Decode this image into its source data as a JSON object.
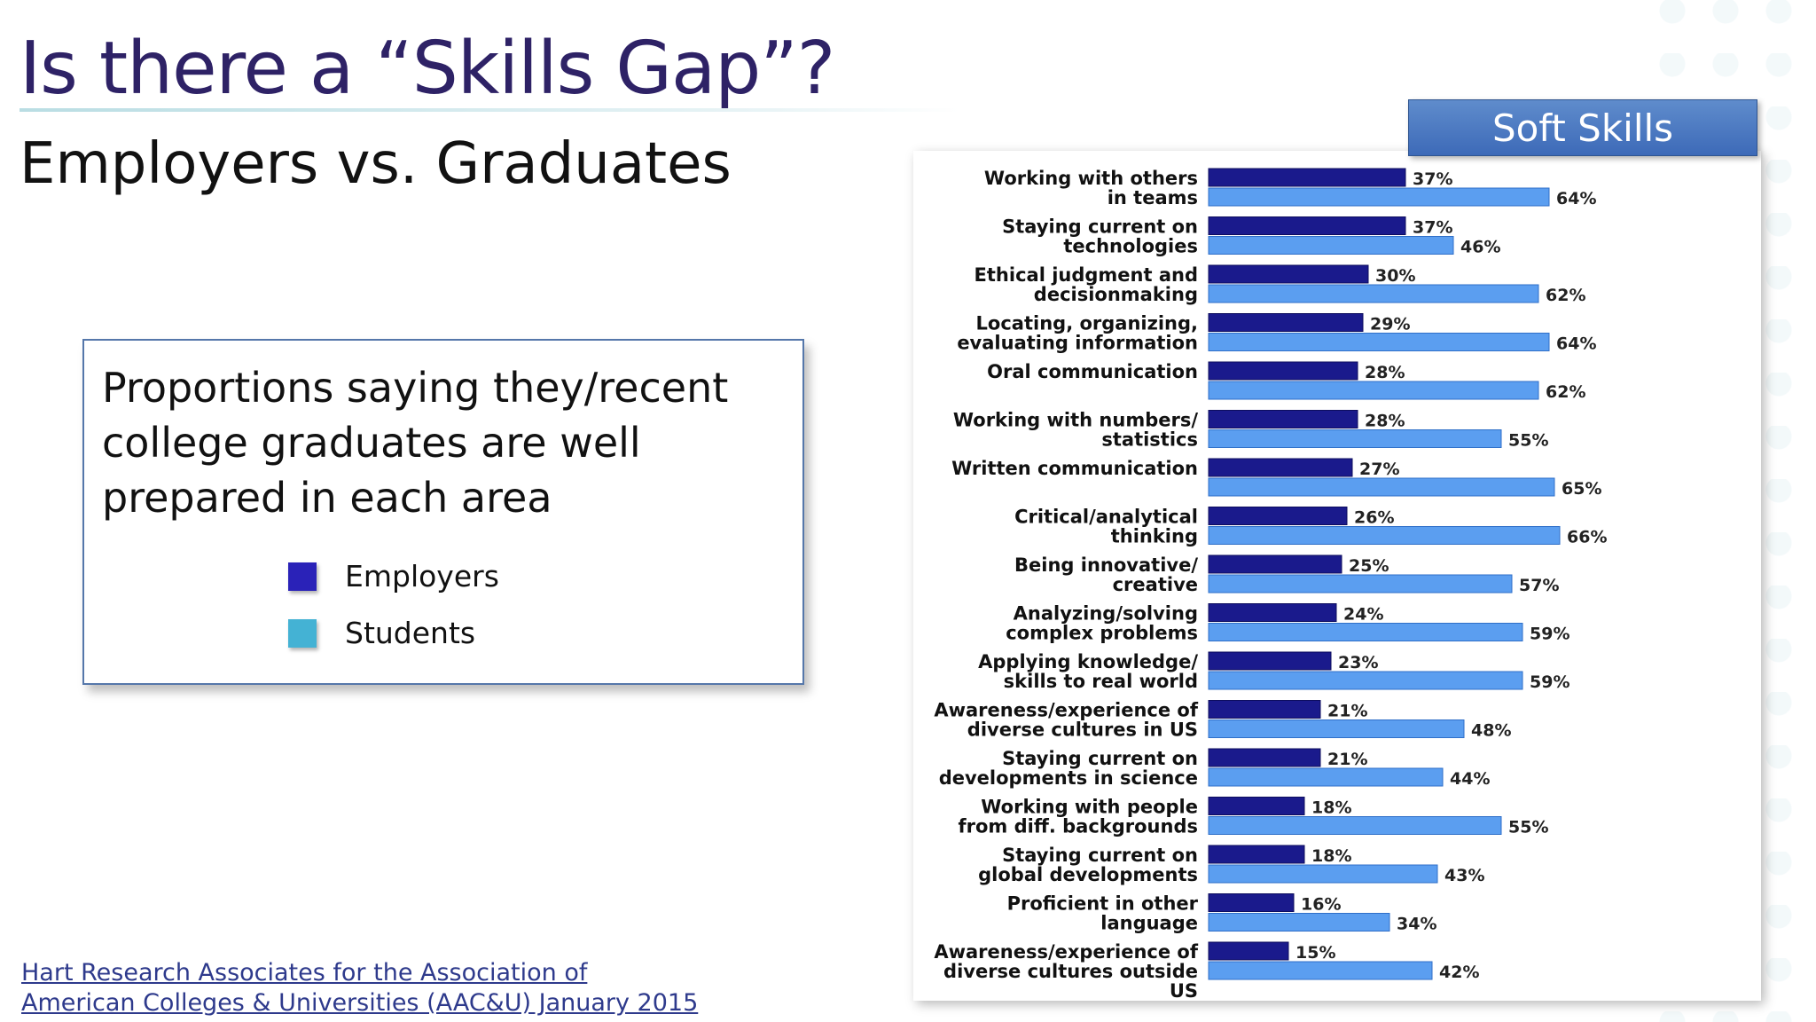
{
  "slide": {
    "title": "Is there a “Skills Gap”?",
    "subtitle": "Employers vs. Graduates",
    "legend_description": "Proportions saying they/recent college graduates are well prepared in each area",
    "legend_items": [
      {
        "label": "Employers",
        "color": "#2a22b8"
      },
      {
        "label": "Students",
        "color": "#44b2d4"
      }
    ],
    "source_line1": "Hart Research Associates for the  Association of",
    "source_line2": "American Colleges & Universities (AAC&U) January 2015"
  },
  "chart_data": {
    "type": "bar",
    "orientation": "horizontal",
    "title": "Soft Skills",
    "categories": [
      [
        "Working with others",
        "in teams"
      ],
      [
        "Staying current on",
        "technologies"
      ],
      [
        "Ethical judgment and",
        "decisionmaking"
      ],
      [
        "Locating, organizing,",
        "evaluating information"
      ],
      [
        "Oral communication"
      ],
      [
        "Working with numbers/",
        "statistics"
      ],
      [
        "Written communication"
      ],
      [
        "Critical/analytical",
        "thinking"
      ],
      [
        "Being innovative/",
        "creative"
      ],
      [
        "Analyzing/solving",
        "complex problems"
      ],
      [
        "Applying knowledge/",
        "skills to real world"
      ],
      [
        "Awareness/experience of",
        "diverse cultures in US"
      ],
      [
        "Staying current on",
        "developments in science"
      ],
      [
        "Working with people",
        "from diff. backgrounds"
      ],
      [
        "Staying current on",
        "global developments"
      ],
      [
        "Proficient in other",
        "language"
      ],
      [
        "Awareness/experience of",
        "diverse cultures outside",
        "US"
      ]
    ],
    "series": [
      {
        "name": "Employers",
        "color": "#1a1a8c",
        "values": [
          37,
          37,
          30,
          29,
          28,
          28,
          27,
          26,
          25,
          24,
          23,
          21,
          21,
          18,
          18,
          16,
          15
        ]
      },
      {
        "name": "Students",
        "color": "#5b9ef0",
        "values": [
          64,
          46,
          62,
          64,
          62,
          55,
          65,
          66,
          57,
          59,
          59,
          48,
          44,
          55,
          43,
          34,
          42
        ]
      }
    ],
    "value_suffix": "%",
    "xlim": [
      0,
      100
    ]
  }
}
